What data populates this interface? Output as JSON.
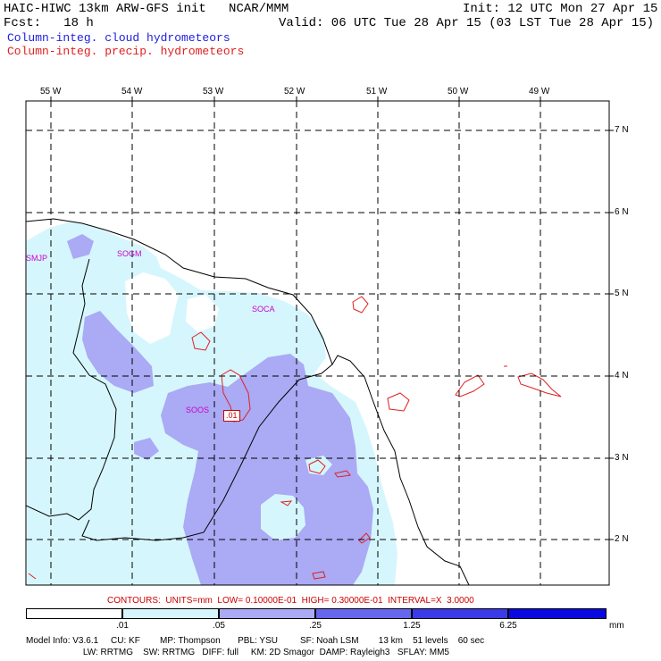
{
  "header": {
    "title": "HAIC-HIWC 13km ARW-GFS init   NCAR/MMM",
    "init": "Init: 12 UTC Mon 27 Apr 15",
    "fcst": "Fcst:   18 h",
    "valid": "Valid: 06 UTC Tue 28 Apr 15 (03 LST Tue 28 Apr 15)",
    "field1": "Column-integ. cloud hydrometeors",
    "field2": "Column-integ. precip. hydrometeors"
  },
  "map": {
    "lon_labels": [
      "55 W",
      "54 W",
      "53 W",
      "52 W",
      "51 W",
      "50 W",
      "49 W"
    ],
    "lat_labels": [
      "7 N",
      "6 N",
      "5 N",
      "4 N",
      "3 N",
      "2 N"
    ],
    "stations": [
      "SMJP",
      "SOGM",
      "SOCA",
      "SOOS"
    ],
    "contour_label": ".01"
  },
  "contours_text": "CONTOURS:  UNITS=mm  LOW= 0.10000E-01  HIGH= 0.30000E-01  INTERVAL=X  3.0000",
  "colorbar": {
    "ticks": [
      ".01",
      ".05",
      ".25",
      "1.25",
      "6.25"
    ],
    "units": "mm",
    "colors": [
      "#ffffff",
      "#d6f6fd",
      "#aaaaf5",
      "#6666ee",
      "#3a3ae6",
      "#0a0ae0"
    ]
  },
  "footer": {
    "line1": "Model Info: V3.6.1     CU: KF        MP: Thompson       PBL: YSU         SF: Noah LSM        13 km    51 levels    60 sec",
    "line2": "                       LW: RRTMG    SW: RRTMG   DIFF: full     KM: 2D Smagor  DAMP: Rayleigh3   SFLAY: MM5"
  }
}
